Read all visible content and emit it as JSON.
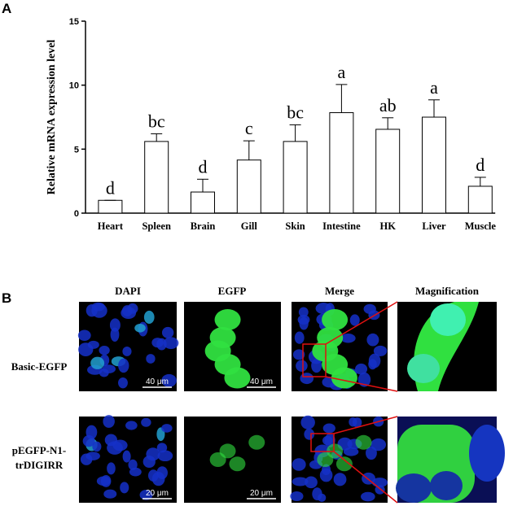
{
  "panel_a_label": "A",
  "chart_data": {
    "type": "bar",
    "ylabel": "Relative mRNA expression level",
    "categories": [
      "Heart",
      "Spleen",
      "Brain",
      "Gill",
      "Skin",
      "Intestine",
      "HK",
      "Liver",
      "Muscle"
    ],
    "values": [
      1.0,
      5.6,
      1.65,
      4.15,
      5.6,
      7.85,
      6.55,
      7.5,
      2.1
    ],
    "errors": [
      0,
      0.6,
      1.0,
      1.5,
      1.3,
      2.2,
      0.9,
      1.35,
      0.7
    ],
    "letters": [
      "d",
      "bc",
      "d",
      "c",
      "bc",
      "a",
      "ab",
      "a",
      "d"
    ],
    "color": "#ffffff",
    "ylim": [
      0,
      15
    ],
    "yticks": [
      0,
      5,
      10,
      15
    ]
  },
  "panel_b": {
    "label": "B",
    "columns": [
      "DAPI",
      "EGFP",
      "Merge",
      "Magnification"
    ],
    "rows": [
      {
        "label": "Basic-EGFP",
        "scale_bars": [
          "40 μm",
          "40 μm"
        ]
      },
      {
        "label_lines": [
          "pEGFP-N1-",
          "trDIGIRR"
        ],
        "scale_bars": [
          "20 μm",
          "20 μm"
        ]
      }
    ]
  }
}
